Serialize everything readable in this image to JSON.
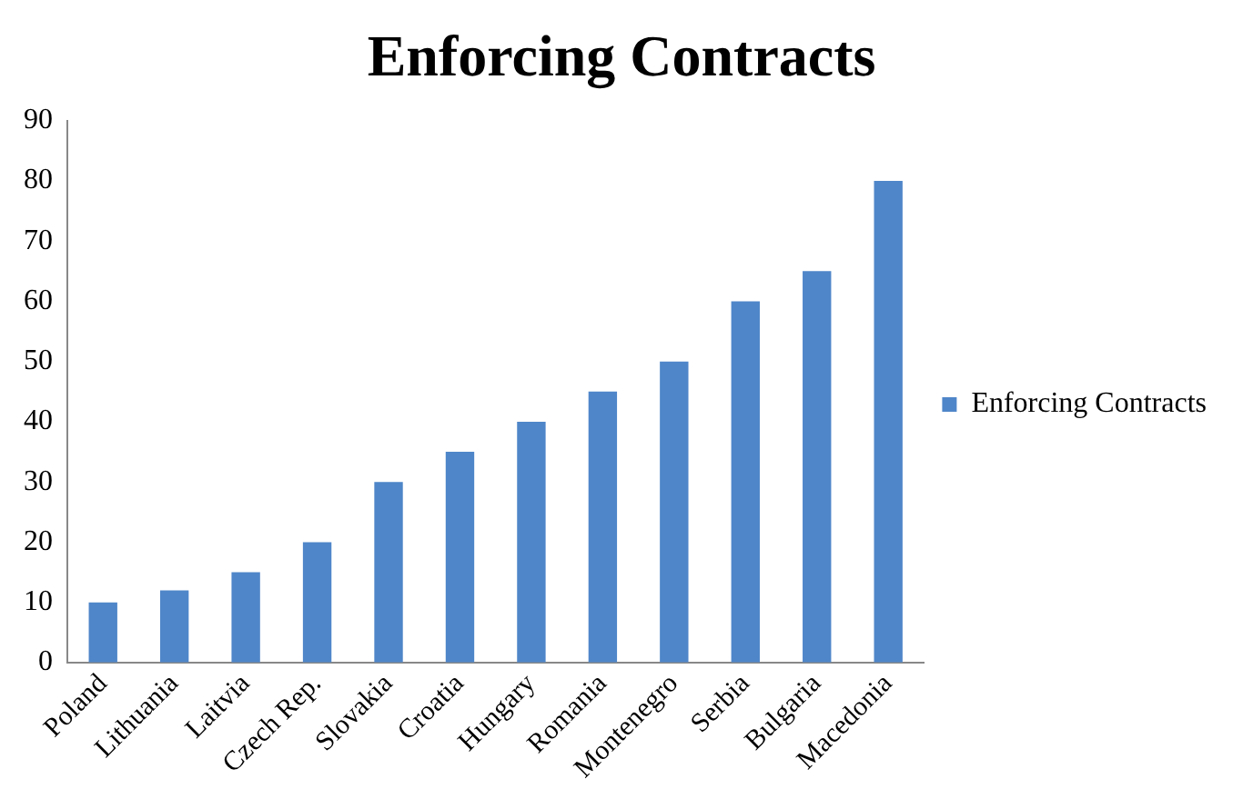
{
  "chart_data": {
    "type": "bar",
    "title": "Enforcing Contracts",
    "categories": [
      "Poland",
      "Lithuania",
      "Laitvia",
      "Czech Rep.",
      "Slovakia",
      "Croatia",
      "Hungary",
      "Romania",
      "Montenegro",
      "Serbia",
      "Bulgaria",
      "Macedonia"
    ],
    "series": [
      {
        "name": "Enforcing Contracts",
        "color": "#4f86c9",
        "values": [
          10,
          12,
          15,
          20,
          30,
          35,
          40,
          45,
          50,
          60,
          65,
          80
        ]
      }
    ],
    "ylim": [
      0,
      90
    ],
    "yticks": [
      0,
      10,
      20,
      30,
      40,
      50,
      60,
      70,
      80,
      90
    ],
    "grid": false,
    "legend": "right"
  }
}
